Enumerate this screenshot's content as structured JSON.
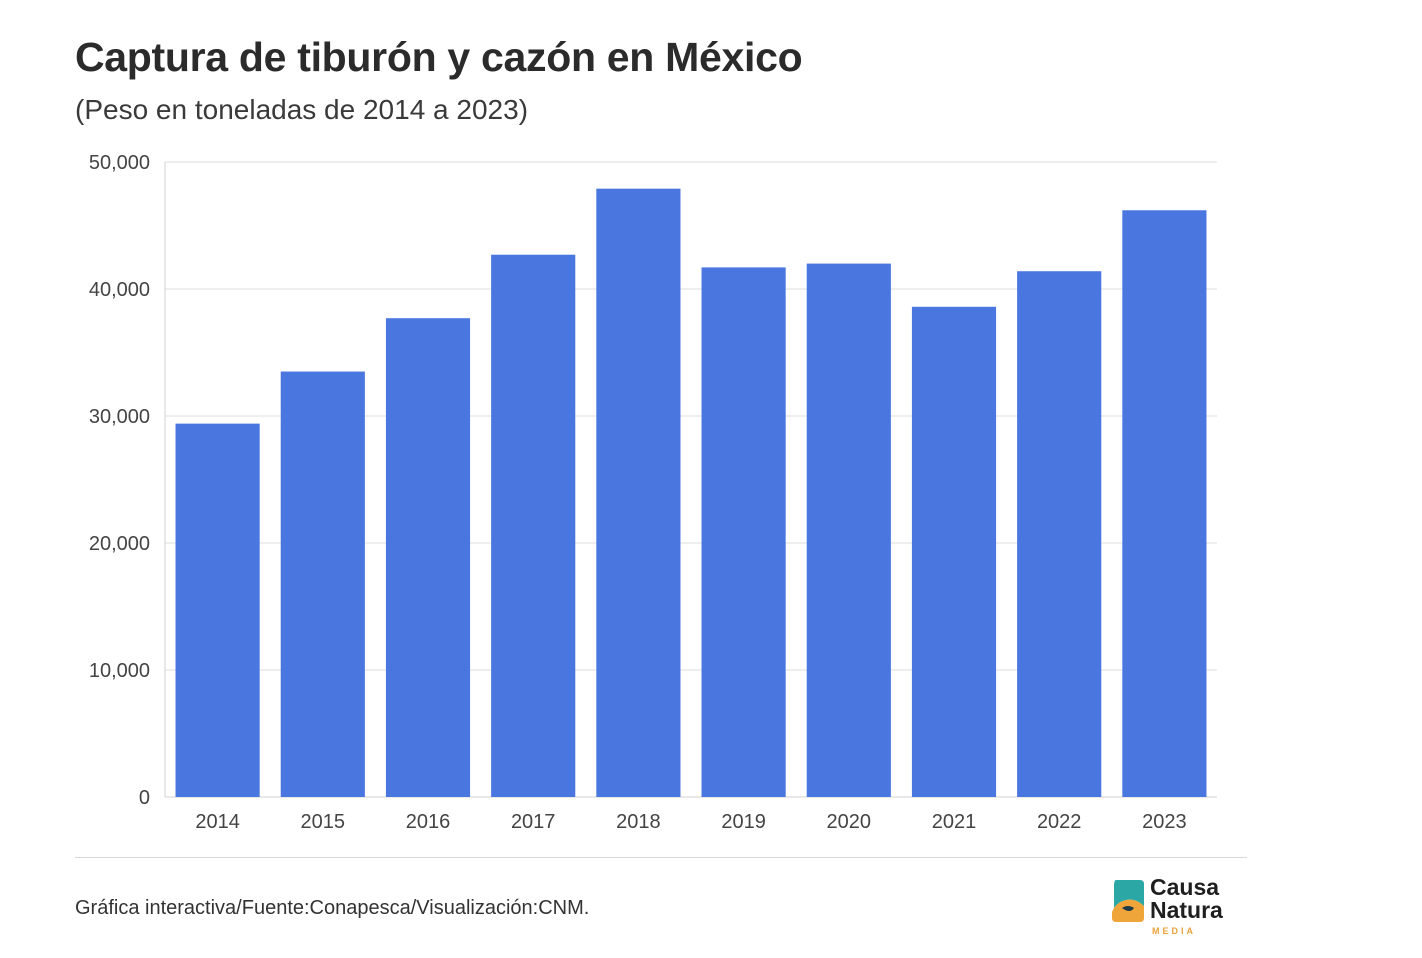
{
  "chart_data": {
    "type": "bar",
    "title": "Captura de tiburón y cazón en México",
    "subtitle": "(Peso en toneladas de 2014 a 2023)",
    "xlabel": "",
    "ylabel": "",
    "categories": [
      "2014",
      "2015",
      "2016",
      "2017",
      "2018",
      "2019",
      "2020",
      "2021",
      "2022",
      "2023"
    ],
    "values": [
      29400,
      33500,
      37700,
      42700,
      47900,
      41700,
      42000,
      38600,
      41400,
      46200
    ],
    "ylim": [
      0,
      50000
    ],
    "yticks": [
      0,
      10000,
      20000,
      30000,
      40000,
      50000
    ],
    "ytick_labels": [
      "0",
      "10,000",
      "20,000",
      "30,000",
      "40,000",
      "50,000"
    ],
    "grid": true,
    "legend": "none",
    "bar_color": "#4a76e0"
  },
  "footer": {
    "source": "Gráfica interactiva/Fuente:Conapesca/Visualización:CNM."
  },
  "logo": {
    "line1": "Causa",
    "line2": "Natura",
    "line3": "MEDIA",
    "mark_color_teal": "#2ba7a6",
    "mark_color_orange": "#f0a53a"
  }
}
